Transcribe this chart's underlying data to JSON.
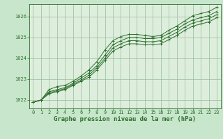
{
  "background_color": "#c8e6cc",
  "plot_bg_color": "#ddeedd",
  "grid_color": "#99bb99",
  "line_color": "#2d6e2d",
  "marker_color": "#2d6e2d",
  "title": "Graphe pression niveau de la mer (hPa)",
  "title_fontsize": 6.5,
  "tick_fontsize": 5.0,
  "xlim": [
    -0.5,
    23.5
  ],
  "ylim": [
    1021.6,
    1026.6
  ],
  "yticks": [
    1022,
    1023,
    1024,
    1025,
    1026
  ],
  "xticks": [
    0,
    1,
    2,
    3,
    4,
    5,
    6,
    7,
    8,
    9,
    10,
    11,
    12,
    13,
    14,
    15,
    16,
    17,
    18,
    19,
    20,
    21,
    22,
    23
  ],
  "series": [
    [
      1021.9,
      1022.0,
      1022.5,
      1022.65,
      1022.7,
      1022.9,
      1023.15,
      1023.45,
      1023.85,
      1024.4,
      1024.85,
      1025.05,
      1025.15,
      1025.15,
      1025.1,
      1025.05,
      1025.1,
      1025.35,
      1025.55,
      1025.8,
      1026.05,
      1026.15,
      1026.25,
      1026.45
    ],
    [
      1021.9,
      1022.0,
      1022.4,
      1022.5,
      1022.6,
      1022.8,
      1023.05,
      1023.3,
      1023.65,
      1024.15,
      1024.65,
      1024.85,
      1025.0,
      1025.0,
      1024.95,
      1024.95,
      1025.0,
      1025.2,
      1025.4,
      1025.65,
      1025.85,
      1025.95,
      1026.05,
      1026.25
    ],
    [
      1021.9,
      1022.0,
      1022.35,
      1022.45,
      1022.55,
      1022.75,
      1022.95,
      1023.2,
      1023.55,
      1024.0,
      1024.5,
      1024.7,
      1024.85,
      1024.85,
      1024.8,
      1024.8,
      1024.85,
      1025.05,
      1025.25,
      1025.5,
      1025.7,
      1025.8,
      1025.9,
      1026.1
    ],
    [
      1021.9,
      1022.0,
      1022.3,
      1022.4,
      1022.5,
      1022.7,
      1022.9,
      1023.1,
      1023.45,
      1023.9,
      1024.35,
      1024.55,
      1024.7,
      1024.7,
      1024.65,
      1024.65,
      1024.7,
      1024.9,
      1025.1,
      1025.35,
      1025.55,
      1025.65,
      1025.75,
      1025.95
    ]
  ]
}
